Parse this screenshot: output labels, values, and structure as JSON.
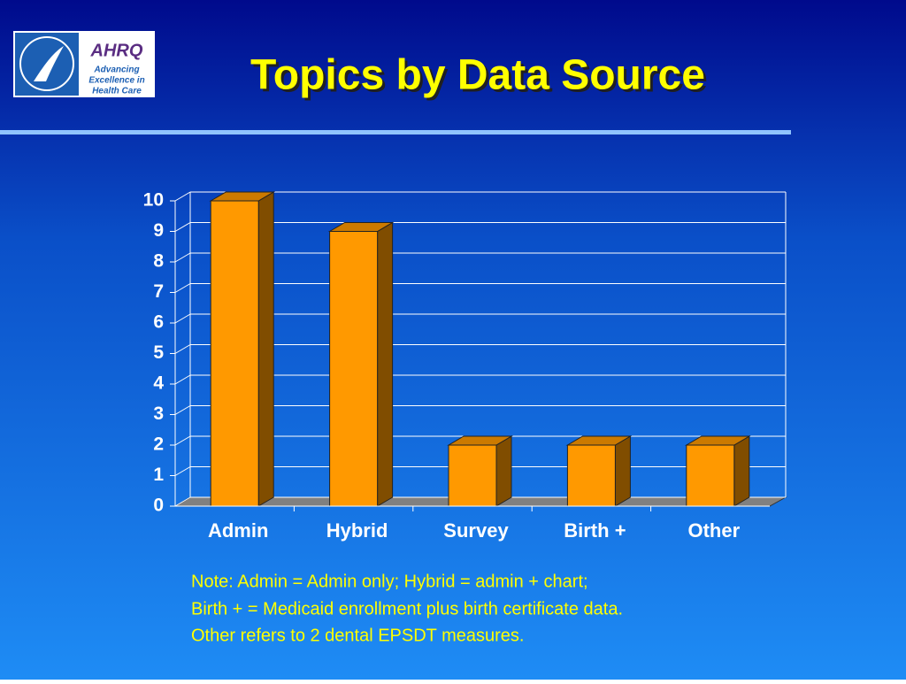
{
  "logo": {
    "name": "AHRQ",
    "lines": [
      "Advancing",
      "Excellence in",
      "Health Care"
    ]
  },
  "chart_data": {
    "type": "bar3d",
    "title": "Topics by Data Source",
    "categories": [
      "Admin",
      "Hybrid",
      "Survey",
      "Birth +",
      "Other"
    ],
    "values": [
      10,
      9,
      2,
      2,
      2
    ],
    "color": "#ff9900",
    "ylim": [
      0,
      10
    ],
    "yticks": [
      0,
      1,
      2,
      3,
      4,
      5,
      6,
      7,
      8,
      9,
      10
    ],
    "grid": true
  },
  "note": [
    "Note:   Admin = Admin only; Hybrid = admin + chart;",
    "Birth + =  Medicaid enrollment plus birth certificate data.",
    "Other refers to 2 dental EPSDT measures."
  ]
}
